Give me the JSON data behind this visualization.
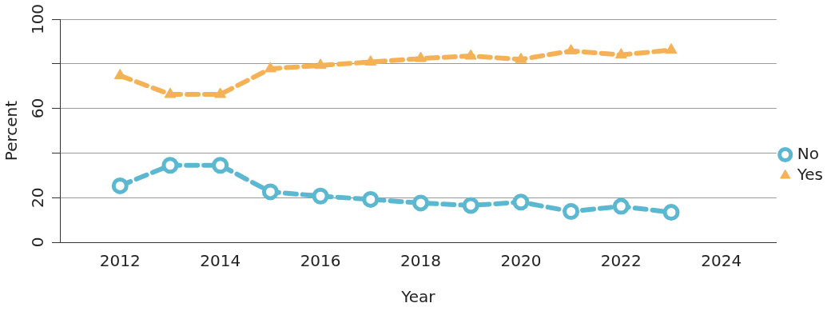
{
  "chart_data": {
    "type": "line",
    "xlabel": "Year",
    "ylabel": "Percent",
    "x": [
      2012,
      2013,
      2014,
      2015,
      2016,
      2017,
      2018,
      2019,
      2020,
      2021,
      2022,
      2023
    ],
    "series": [
      {
        "name": "No",
        "color": "#5bb8d0",
        "marker": "circle",
        "values": [
          25.3,
          34.5,
          34.5,
          22.6,
          20.7,
          19.2,
          17.6,
          16.5,
          18,
          13.8,
          16.1,
          13.4
        ]
      },
      {
        "name": "Yes",
        "color": "#f5b155",
        "marker": "triangle",
        "values": [
          74.7,
          66.3,
          66.3,
          77.8,
          79.3,
          80.8,
          82.4,
          83.5,
          82,
          85.8,
          84,
          86.2
        ]
      }
    ],
    "xlim": [
      2010.8,
      2025.1
    ],
    "xticks": [
      2012,
      2014,
      2016,
      2018,
      2020,
      2022,
      2024
    ],
    "ylim": [
      0,
      100
    ],
    "yticks": [
      0,
      20,
      {
        "value": 40,
        "label": null
      },
      60,
      {
        "value": 80,
        "label": null
      },
      100
    ],
    "grid": "y",
    "legend": "right",
    "line_style": "dashed"
  }
}
